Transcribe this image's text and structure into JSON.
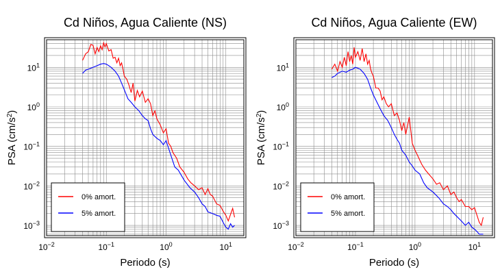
{
  "chart_data": [
    {
      "type": "line",
      "title": "Cd Niños, Agua Caliente (NS)",
      "xlabel": "Periodo (s)",
      "ylabel_main": "PSA (cm/s",
      "ylabel_sup": "2",
      "ylabel_tail": ")",
      "xscale": "log",
      "yscale": "log",
      "xlim": [
        0.01,
        20
      ],
      "ylim": [
        0.00055,
        50
      ],
      "x_ticks": [
        {
          "base": "10",
          "exp": "−2"
        },
        {
          "base": "10",
          "exp": "−1"
        },
        {
          "base": "10",
          "exp": "0"
        },
        {
          "base": "10",
          "exp": "1"
        }
      ],
      "y_ticks": [
        {
          "base": "10",
          "exp": "−3"
        },
        {
          "base": "10",
          "exp": "−2"
        },
        {
          "base": "10",
          "exp": "−1"
        },
        {
          "base": "10",
          "exp": "0"
        },
        {
          "base": "10",
          "exp": "1"
        }
      ],
      "grid": true,
      "legend_position": "bottom-left",
      "series": [
        {
          "name": "0% amort.",
          "color": "#ff0000",
          "x": [
            0.04,
            0.045,
            0.05,
            0.055,
            0.06,
            0.065,
            0.07,
            0.075,
            0.08,
            0.085,
            0.09,
            0.095,
            0.1,
            0.11,
            0.12,
            0.13,
            0.14,
            0.15,
            0.16,
            0.17,
            0.18,
            0.19,
            0.2,
            0.22,
            0.24,
            0.26,
            0.28,
            0.3,
            0.33,
            0.36,
            0.4,
            0.45,
            0.5,
            0.55,
            0.6,
            0.65,
            0.7,
            0.8,
            0.9,
            1.0,
            1.1,
            1.2,
            1.3,
            1.5,
            1.7,
            2.0,
            2.3,
            2.6,
            3.0,
            3.5,
            4.0,
            4.5,
            5.0,
            5.5,
            6.0,
            7.0,
            8.0,
            9.0,
            10.0,
            11.0,
            12.0,
            13.0,
            14.0
          ],
          "y": [
            15,
            22,
            25,
            38,
            36,
            22,
            32,
            25,
            35,
            28,
            42,
            33,
            40,
            26,
            28,
            17,
            18,
            13,
            17,
            11,
            13,
            9,
            6,
            5,
            3.5,
            2.3,
            4,
            1.4,
            2.6,
            1.8,
            2.5,
            1.3,
            1.6,
            1.2,
            0.6,
            0.8,
            0.5,
            0.35,
            0.22,
            0.28,
            0.12,
            0.1,
            0.07,
            0.05,
            0.03,
            0.022,
            0.015,
            0.012,
            0.01,
            0.008,
            0.009,
            0.006,
            0.0085,
            0.006,
            0.0055,
            0.0035,
            0.0032,
            0.0023,
            0.0018,
            0.0013,
            0.0019,
            0.0027,
            0.0016
          ]
        },
        {
          "name": "5% amort.",
          "color": "#0000ff",
          "x": [
            0.04,
            0.045,
            0.05,
            0.06,
            0.07,
            0.08,
            0.09,
            0.1,
            0.11,
            0.12,
            0.14,
            0.16,
            0.18,
            0.2,
            0.23,
            0.26,
            0.3,
            0.35,
            0.4,
            0.45,
            0.5,
            0.55,
            0.6,
            0.7,
            0.8,
            0.9,
            1.0,
            1.2,
            1.4,
            1.6,
            2.0,
            2.5,
            3.0,
            3.5,
            4.0,
            4.5,
            5.0,
            6.0,
            7.0,
            8.0,
            9.0,
            10.0,
            11.0,
            12.0,
            13.0,
            14.0
          ],
          "y": [
            7,
            8.5,
            9,
            10,
            11,
            12,
            12.5,
            12,
            11,
            10,
            8,
            6,
            4,
            2.7,
            1.6,
            1.3,
            1.0,
            0.8,
            0.6,
            0.5,
            0.45,
            0.28,
            0.2,
            0.16,
            0.14,
            0.11,
            0.14,
            0.06,
            0.03,
            0.025,
            0.014,
            0.009,
            0.007,
            0.005,
            0.0035,
            0.003,
            0.0022,
            0.002,
            0.0018,
            0.0017,
            0.0012,
            0.0009,
            0.0008,
            0.0011,
            0.0009,
            0.001
          ]
        }
      ]
    },
    {
      "type": "line",
      "title": "Cd Niños, Agua Caliente (EW)",
      "xlabel": "Periodo (s)",
      "ylabel_main": "PSA (cm/s",
      "ylabel_sup": "2",
      "ylabel_tail": ")",
      "xscale": "log",
      "yscale": "log",
      "xlim": [
        0.01,
        20
      ],
      "ylim": [
        0.00055,
        50
      ],
      "x_ticks": [
        {
          "base": "10",
          "exp": "−2"
        },
        {
          "base": "10",
          "exp": "−1"
        },
        {
          "base": "10",
          "exp": "0"
        },
        {
          "base": "10",
          "exp": "1"
        }
      ],
      "y_ticks": [
        {
          "base": "10",
          "exp": "−3"
        },
        {
          "base": "10",
          "exp": "−2"
        },
        {
          "base": "10",
          "exp": "−1"
        },
        {
          "base": "10",
          "exp": "0"
        },
        {
          "base": "10",
          "exp": "1"
        }
      ],
      "grid": true,
      "legend_position": "bottom-left",
      "series": [
        {
          "name": "0% amort.",
          "color": "#ff0000",
          "x": [
            0.04,
            0.045,
            0.05,
            0.055,
            0.06,
            0.065,
            0.07,
            0.075,
            0.08,
            0.085,
            0.09,
            0.095,
            0.1,
            0.11,
            0.12,
            0.13,
            0.14,
            0.15,
            0.16,
            0.17,
            0.18,
            0.19,
            0.2,
            0.22,
            0.24,
            0.26,
            0.28,
            0.3,
            0.33,
            0.36,
            0.4,
            0.45,
            0.5,
            0.55,
            0.6,
            0.65,
            0.7,
            0.8,
            0.9,
            1.0,
            1.1,
            1.2,
            1.3,
            1.5,
            1.7,
            2.0,
            2.3,
            2.6,
            3.0,
            3.5,
            4.0,
            4.5,
            5.0,
            5.5,
            6.0,
            7.0,
            8.0,
            9.0,
            10.0,
            11.0,
            12.0,
            13.0,
            14.0
          ],
          "y": [
            9,
            12,
            8,
            14,
            10,
            18,
            11,
            25,
            14,
            20,
            12,
            32,
            18,
            25,
            15,
            30,
            14,
            22,
            12,
            15,
            9,
            7,
            6,
            3,
            3,
            2.5,
            1.5,
            1.8,
            1.2,
            1.0,
            1.2,
            0.6,
            0.7,
            0.45,
            0.25,
            0.4,
            0.2,
            0.55,
            0.12,
            0.08,
            0.06,
            0.045,
            0.035,
            0.025,
            0.02,
            0.015,
            0.011,
            0.012,
            0.008,
            0.01,
            0.006,
            0.007,
            0.005,
            0.004,
            0.0045,
            0.003,
            0.003,
            0.0025,
            0.0028,
            0.0018,
            0.0012,
            0.001,
            0.0016
          ]
        },
        {
          "name": "5% amort.",
          "color": "#0000ff",
          "x": [
            0.04,
            0.045,
            0.05,
            0.06,
            0.07,
            0.08,
            0.09,
            0.1,
            0.11,
            0.12,
            0.14,
            0.16,
            0.18,
            0.2,
            0.23,
            0.26,
            0.3,
            0.35,
            0.4,
            0.45,
            0.5,
            0.55,
            0.6,
            0.7,
            0.8,
            0.9,
            1.0,
            1.2,
            1.4,
            1.6,
            2.0,
            2.5,
            3.0,
            3.5,
            4.0,
            4.5,
            5.0,
            6.0,
            7.0,
            8.0,
            9.0,
            10.0,
            11.0,
            12.0,
            13.0,
            14.0
          ],
          "y": [
            5.5,
            6,
            7,
            8,
            7.5,
            8.5,
            9,
            10,
            9.5,
            9,
            7,
            5,
            3,
            2,
            1.3,
            0.9,
            0.6,
            0.45,
            0.3,
            0.2,
            0.15,
            0.12,
            0.08,
            0.06,
            0.04,
            0.032,
            0.025,
            0.02,
            0.012,
            0.009,
            0.007,
            0.005,
            0.0035,
            0.003,
            0.0025,
            0.002,
            0.0017,
            0.0013,
            0.001,
            0.0012,
            0.0009,
            0.0008,
            0.0007,
            0.0006,
            0.0006,
            0.0006
          ]
        }
      ]
    }
  ]
}
